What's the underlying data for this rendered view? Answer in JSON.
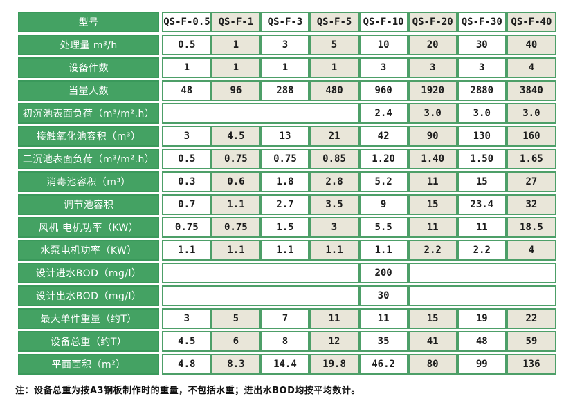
{
  "table": {
    "header": {
      "label": "型号",
      "models": [
        "QS-F-0.5",
        "QS-F-1",
        "QS-F-3",
        "QS-F-5",
        "QS-F-10",
        "QS-F-20",
        "QS-F-30",
        "QS-F-40"
      ]
    },
    "rows": [
      {
        "label": "处理量 m³/h",
        "cells": [
          {
            "t": "0.5"
          },
          {
            "t": "1"
          },
          {
            "t": "3"
          },
          {
            "t": "5"
          },
          {
            "t": "10"
          },
          {
            "t": "20"
          },
          {
            "t": "30"
          },
          {
            "t": "40"
          }
        ]
      },
      {
        "label": "设备件数",
        "cells": [
          {
            "t": "1"
          },
          {
            "t": "1"
          },
          {
            "t": "1"
          },
          {
            "t": "1"
          },
          {
            "t": "3"
          },
          {
            "t": "3"
          },
          {
            "t": "3"
          },
          {
            "t": "4"
          }
        ]
      },
      {
        "label": "当量人数",
        "cells": [
          {
            "t": "48"
          },
          {
            "t": "96"
          },
          {
            "t": "288"
          },
          {
            "t": "480"
          },
          {
            "t": "960"
          },
          {
            "t": "1920"
          },
          {
            "t": "2880"
          },
          {
            "t": "3840"
          }
        ]
      },
      {
        "label": "初沉池表面负荷（m³/m².h）",
        "cells": [
          {
            "t": "",
            "s": 4
          },
          {
            "t": "2.4"
          },
          {
            "t": "3.0"
          },
          {
            "t": "3.0"
          },
          {
            "t": "3.0"
          }
        ]
      },
      {
        "label": "接触氧化池容积（m³）",
        "cells": [
          {
            "t": "3"
          },
          {
            "t": "4.5"
          },
          {
            "t": "13"
          },
          {
            "t": "21"
          },
          {
            "t": "42"
          },
          {
            "t": "90"
          },
          {
            "t": "130"
          },
          {
            "t": "160"
          }
        ]
      },
      {
        "label": "二沉池表面负荷（m³/m².h）",
        "cells": [
          {
            "t": "0.5"
          },
          {
            "t": "0.75"
          },
          {
            "t": "0.75"
          },
          {
            "t": "0.85"
          },
          {
            "t": "1.20"
          },
          {
            "t": "1.40"
          },
          {
            "t": "1.50"
          },
          {
            "t": "1.65"
          }
        ]
      },
      {
        "label": "消毒池容积（m³）",
        "cells": [
          {
            "t": "0.3"
          },
          {
            "t": "0.6"
          },
          {
            "t": "1.8"
          },
          {
            "t": "2.8"
          },
          {
            "t": "5.2"
          },
          {
            "t": "11"
          },
          {
            "t": "15"
          },
          {
            "t": "27"
          }
        ]
      },
      {
        "label": "调节池容积",
        "cells": [
          {
            "t": "0.7"
          },
          {
            "t": "1.1"
          },
          {
            "t": "2.7"
          },
          {
            "t": "3.5"
          },
          {
            "t": "9"
          },
          {
            "t": "15"
          },
          {
            "t": "23.4"
          },
          {
            "t": "32"
          }
        ]
      },
      {
        "label": "风机 电机功率（KW）",
        "cells": [
          {
            "t": "0.75"
          },
          {
            "t": "0.75"
          },
          {
            "t": "1.5"
          },
          {
            "t": "3"
          },
          {
            "t": "5.5"
          },
          {
            "t": "11"
          },
          {
            "t": "11"
          },
          {
            "t": "18.5"
          }
        ]
      },
      {
        "label": "水泵电机功率（KW）",
        "cells": [
          {
            "t": "1.1"
          },
          {
            "t": "1.1"
          },
          {
            "t": "1.1"
          },
          {
            "t": "1.1"
          },
          {
            "t": "1.1"
          },
          {
            "t": "2.2"
          },
          {
            "t": "2.2"
          },
          {
            "t": "4"
          }
        ]
      },
      {
        "label": "设计进水BOD（mg/l）",
        "cells": [
          {
            "t": "",
            "s": 4
          },
          {
            "t": "200"
          },
          {
            "t": "",
            "s": 3
          }
        ]
      },
      {
        "label": "设计出水BOD（mg/l）",
        "cells": [
          {
            "t": "",
            "s": 4
          },
          {
            "t": "30"
          },
          {
            "t": "",
            "s": 3
          }
        ]
      },
      {
        "label": "最大单件重量（约T）",
        "cells": [
          {
            "t": "3"
          },
          {
            "t": "5"
          },
          {
            "t": "7"
          },
          {
            "t": "11"
          },
          {
            "t": "11"
          },
          {
            "t": "15"
          },
          {
            "t": "19"
          },
          {
            "t": "22"
          }
        ]
      },
      {
        "label": "设备总重（约T）",
        "cells": [
          {
            "t": "4.5"
          },
          {
            "t": "6"
          },
          {
            "t": "8"
          },
          {
            "t": "12"
          },
          {
            "t": "35"
          },
          {
            "t": "41"
          },
          {
            "t": "48"
          },
          {
            "t": "59"
          }
        ]
      },
      {
        "label": "平面面积（m²）",
        "cells": [
          {
            "t": "4.8"
          },
          {
            "t": "8.3"
          },
          {
            "t": "14.4"
          },
          {
            "t": "19.8"
          },
          {
            "t": "46.2"
          },
          {
            "t": "80"
          },
          {
            "t": "99"
          },
          {
            "t": "136"
          }
        ]
      }
    ]
  },
  "note": "注：设备总重为按A3钢板制作时的重量，不包括水重；进出水BOD均按平均数计。",
  "colors": {
    "label_green": "#44a263",
    "border_green": "#4d9f68",
    "cell_beige": "#e9e6d9",
    "cell_white": "#ffffff",
    "text_dark": "#1c1c1c"
  }
}
